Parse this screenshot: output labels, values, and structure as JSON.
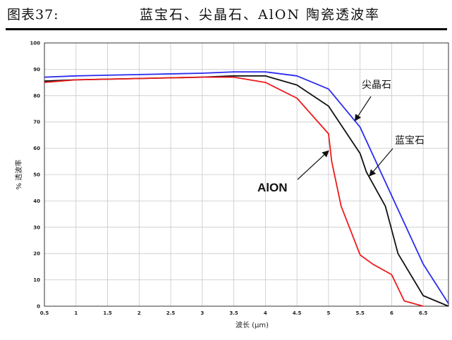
{
  "header": {
    "figure_number": "图表37:",
    "title": "蓝宝石、尖晶石、AlON 陶瓷透波率"
  },
  "chart_data": {
    "type": "line",
    "title": "蓝宝石、尖晶石、AlON 陶瓷透波率",
    "xlabel": "波长  (μm)",
    "ylabel": "%  透波率",
    "xlim": [
      0.5,
      6.9
    ],
    "ylim": [
      0,
      100
    ],
    "x_ticks": [
      "0.5",
      "1",
      "1.5",
      "2",
      "2.5",
      "3",
      "3.5",
      "4",
      "4.5",
      "5",
      "5.5",
      "6",
      "6.5"
    ],
    "y_ticks": [
      "0",
      "10",
      "20",
      "30",
      "40",
      "50",
      "60",
      "70",
      "80",
      "90",
      "100"
    ],
    "grid": true,
    "series": [
      {
        "name": "尖晶石",
        "color": "#2a2af0",
        "x": [
          0.5,
          1.0,
          2.0,
          3.0,
          3.5,
          4.0,
          4.5,
          5.0,
          5.5,
          6.0,
          6.5,
          6.9
        ],
        "y": [
          87,
          87.5,
          88,
          88.5,
          89,
          89,
          87.5,
          82.5,
          68,
          42,
          16,
          1
        ]
      },
      {
        "name": "蓝宝石",
        "color": "#111111",
        "x": [
          0.5,
          1.0,
          2.0,
          3.0,
          3.5,
          4.0,
          4.5,
          5.0,
          5.5,
          5.6,
          5.9,
          6.1,
          6.5,
          6.9
        ],
        "y": [
          85.5,
          86,
          86.5,
          87,
          87.5,
          87.5,
          84,
          76,
          58,
          51,
          38,
          20,
          4,
          0
        ]
      },
      {
        "name": "AlON",
        "color": "#ee1a1a",
        "x": [
          0.5,
          1.0,
          2.0,
          3.0,
          3.5,
          4.0,
          4.5,
          5.0,
          5.05,
          5.2,
          5.5,
          5.7,
          6.0,
          6.2,
          6.5
        ],
        "y": [
          85,
          86,
          86.5,
          87,
          87,
          85,
          79,
          65.5,
          55,
          38,
          19.5,
          16,
          12,
          2,
          0
        ]
      }
    ],
    "annotations": [
      {
        "text": "尖晶石",
        "target_series": "尖晶石",
        "target_x": 5.42,
        "target_y": 70.5
      },
      {
        "text": "蓝宝石",
        "target_series": "蓝宝石",
        "target_x": 5.65,
        "target_y": 49.5
      },
      {
        "text": "AlON",
        "target_series": "AlON",
        "target_x": 5.0,
        "target_y": 59
      }
    ]
  }
}
